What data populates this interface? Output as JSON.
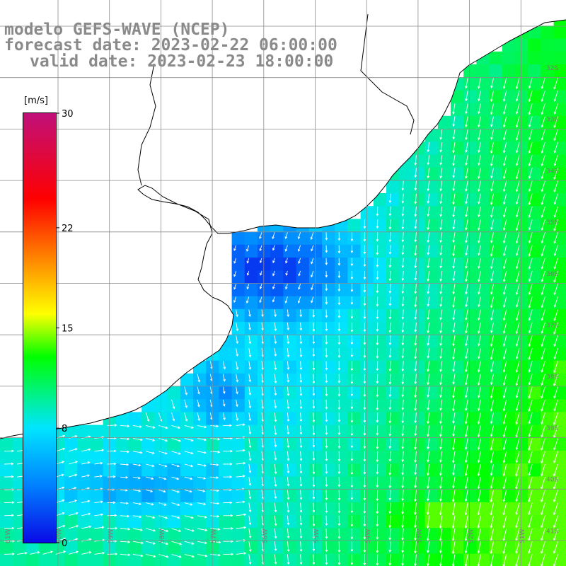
{
  "title": {
    "model": "modelo GEFS-WAVE (NCEP)",
    "forecast": "forecast date: 2023-02-22 06:00:00",
    "valid": "valid date: 2023-02-23 18:00:00"
  },
  "colorbar": {
    "unit": "[m/s]",
    "ticks": [
      "30",
      "22",
      "15",
      "8",
      "0"
    ],
    "tick_values": [
      30,
      22,
      15,
      8,
      0
    ],
    "min": 0,
    "max": 30,
    "colors": [
      "#0a0ae6",
      "#0080ff",
      "#00e5ff",
      "#00ff00",
      "#ffff00",
      "#ff8000",
      "#ff0000",
      "#c0107a"
    ]
  },
  "map": {
    "land_color": "#ffffff",
    "coast_color": "#000000",
    "grid_color": "#8c8c8c",
    "lat_labels": [
      "32S",
      "33S",
      "34S",
      "35S",
      "36S",
      "37S",
      "38S",
      "39S",
      "40S",
      "41S"
    ],
    "lon_labels": [
      "61W",
      "60W",
      "59W",
      "58W",
      "57W",
      "56W",
      "55W",
      "54W",
      "53W",
      "52W",
      "51W"
    ],
    "arrow_color": "#ffffff",
    "field_description_values": {
      "offshore_east_speed_ms": 12,
      "estuary_speed_ms": 2,
      "shelf_speed_ms": 7
    }
  }
}
